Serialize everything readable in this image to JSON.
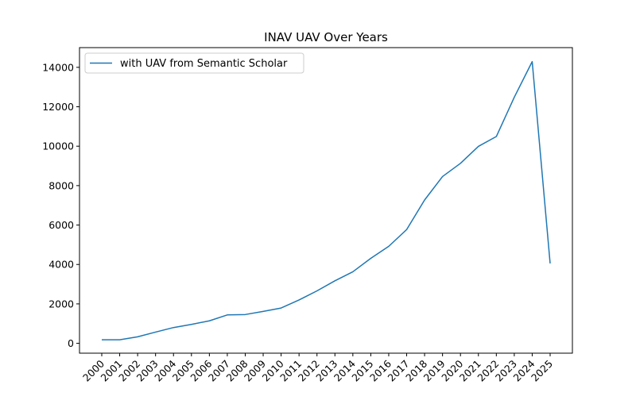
{
  "chart_data": {
    "type": "line",
    "title": "INAV UAV Over Years",
    "xlabel": "",
    "ylabel": "",
    "x": [
      "2000",
      "2001",
      "2002",
      "2003",
      "2004",
      "2005",
      "2006",
      "2007",
      "2008",
      "2009",
      "2010",
      "2011",
      "2012",
      "2013",
      "2014",
      "2015",
      "2016",
      "2017",
      "2018",
      "2019",
      "2020",
      "2021",
      "2022",
      "2023",
      "2024",
      "2025"
    ],
    "series": [
      {
        "name": "with UAV from Semantic Scholar",
        "color": "#1f77b4",
        "values": [
          180,
          180,
          330,
          570,
          800,
          960,
          1140,
          1440,
          1460,
          1620,
          1790,
          2200,
          2660,
          3170,
          3630,
          4310,
          4920,
          5770,
          7270,
          8460,
          9130,
          9990,
          10490,
          12480,
          14290,
          4050
        ]
      }
    ],
    "ylim": [
      -500,
      15000
    ],
    "yticks": [
      0,
      2000,
      4000,
      6000,
      8000,
      10000,
      12000,
      14000
    ],
    "grid": false,
    "legend_position": "upper left"
  }
}
